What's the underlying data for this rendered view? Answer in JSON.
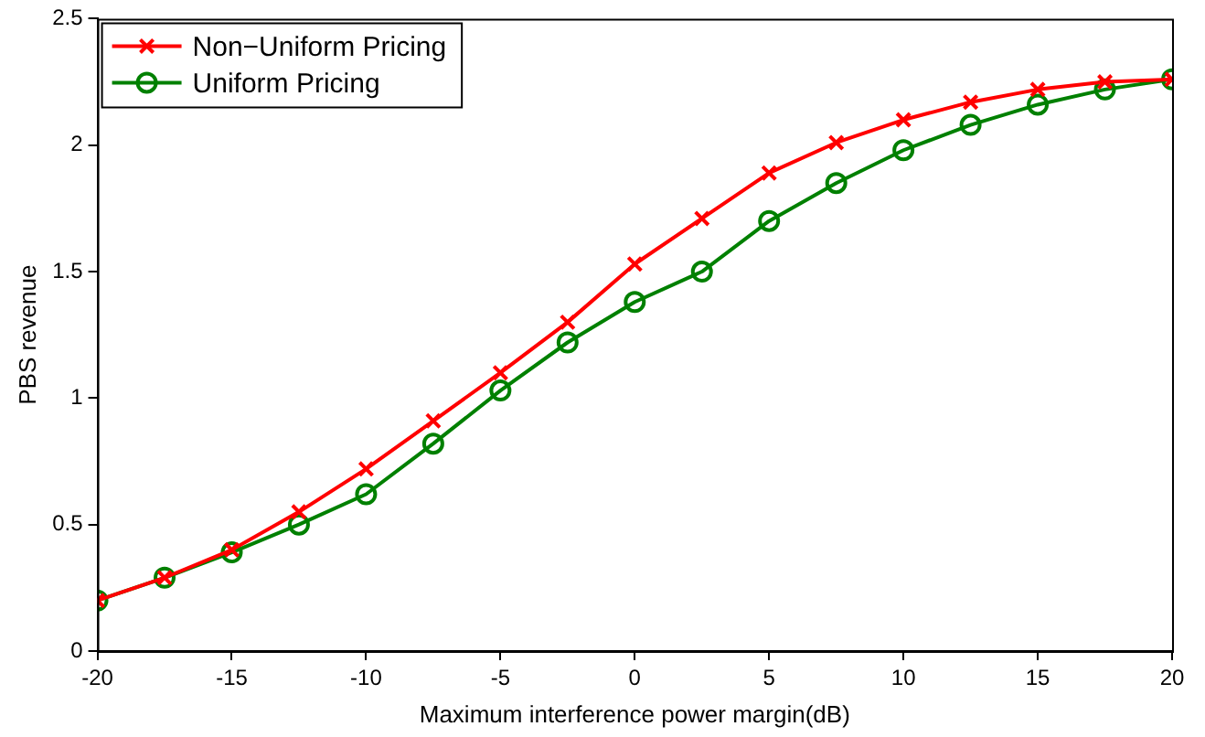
{
  "chart_data": {
    "type": "line",
    "xlabel": "Maximum interference power margin(dB)",
    "ylabel": "PBS revenue",
    "x": [
      -20,
      -17.5,
      -15,
      -12.5,
      -10,
      -7.5,
      -5,
      -2.5,
      0,
      2.5,
      5,
      7.5,
      10,
      12.5,
      15,
      17.5,
      20
    ],
    "series": [
      {
        "name": "Non−Uniform Pricing",
        "color": "#ff0000",
        "marker": "cross",
        "values": [
          0.2,
          0.29,
          0.4,
          0.55,
          0.72,
          0.91,
          1.1,
          1.3,
          1.53,
          1.71,
          1.89,
          2.01,
          2.1,
          2.17,
          2.22,
          2.25,
          2.26
        ]
      },
      {
        "name": "Uniform Pricing",
        "color": "#008000",
        "marker": "circle",
        "values": [
          0.2,
          0.29,
          0.39,
          0.5,
          0.62,
          0.82,
          1.03,
          1.22,
          1.38,
          1.5,
          1.7,
          1.85,
          1.98,
          2.08,
          2.16,
          2.22,
          2.26
        ]
      }
    ],
    "xlim": [
      -20,
      20
    ],
    "xticks": [
      -20,
      -15,
      -10,
      -5,
      0,
      5,
      10,
      15,
      20
    ],
    "ylim": [
      0,
      2.5
    ],
    "yticks": [
      0,
      0.5,
      1,
      1.5,
      2,
      2.5
    ],
    "grid": false,
    "legend": "top left",
    "line_style": "solid"
  }
}
